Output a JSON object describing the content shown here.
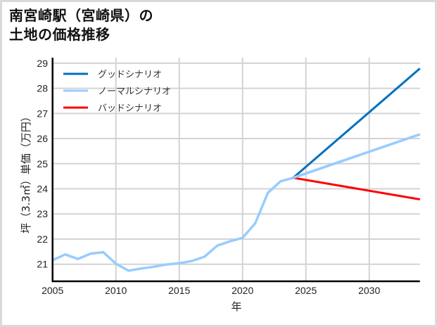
{
  "title_line1": "南宮崎駅（宮崎県）の",
  "title_line2": "土地の価格推移",
  "chart_data": {
    "type": "line",
    "title": "南宮崎駅（宮崎県）の土地の価格推移",
    "xlabel": "年",
    "ylabel": "坪（3.3㎡）単価（万円）",
    "xlim": [
      2005,
      2034
    ],
    "ylim": [
      20.32,
      29.22
    ],
    "xticks": [
      2005,
      2010,
      2015,
      2020,
      2025,
      2030
    ],
    "yticks": [
      21,
      22,
      23,
      24,
      25,
      26,
      27,
      28,
      29
    ],
    "grid": true,
    "legend_position": "upper left",
    "series": [
      {
        "name": "グッドシナリオ",
        "color": "#0070c0",
        "x": [
          2024,
          2034
        ],
        "values": [
          24.44,
          28.79
        ]
      },
      {
        "name": "ノーマルシナリオ",
        "color": "#99ccff",
        "x": [
          2005,
          2006,
          2007,
          2008,
          2009,
          2010,
          2011,
          2012,
          2013,
          2014,
          2015,
          2016,
          2017,
          2018,
          2019,
          2020,
          2021,
          2022,
          2023,
          2024,
          2034
        ],
        "values": [
          21.16,
          21.39,
          21.21,
          21.42,
          21.48,
          21.02,
          20.74,
          20.83,
          20.9,
          20.99,
          21.04,
          21.13,
          21.3,
          21.74,
          21.91,
          22.05,
          22.63,
          23.84,
          24.3,
          24.44,
          26.17
        ]
      },
      {
        "name": "バッドシナリオ",
        "color": "#ff0000",
        "x": [
          2024,
          2034
        ],
        "values": [
          24.44,
          23.58
        ]
      }
    ]
  }
}
